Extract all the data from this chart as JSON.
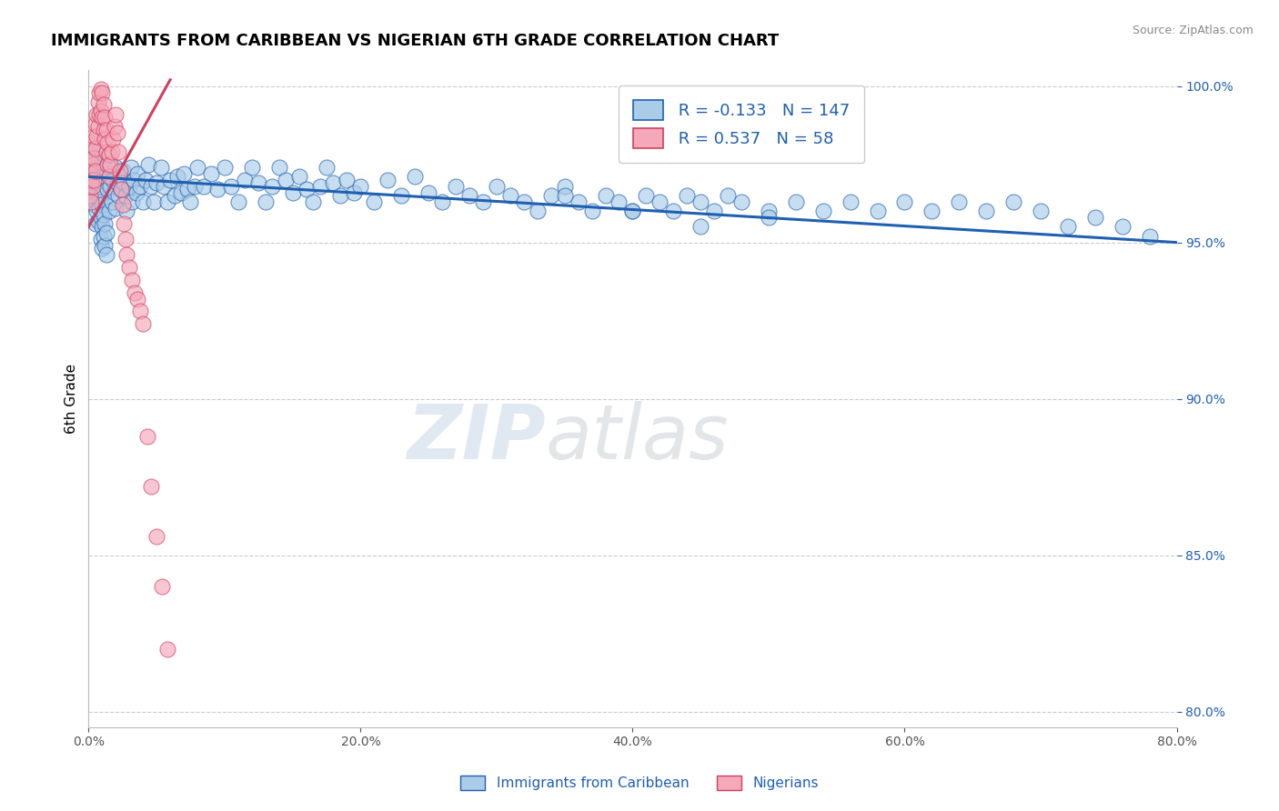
{
  "title": "IMMIGRANTS FROM CARIBBEAN VS NIGERIAN 6TH GRADE CORRELATION CHART",
  "source": "Source: ZipAtlas.com",
  "ylabel": "6th Grade",
  "xlim": [
    0.0,
    0.8
  ],
  "ylim": [
    0.795,
    1.005
  ],
  "legend_blue_R": "-0.133",
  "legend_blue_N": "147",
  "legend_pink_R": "0.537",
  "legend_pink_N": "58",
  "blue_color": "#aacce8",
  "pink_color": "#f4a8ba",
  "blue_line_color": "#2060b0",
  "pink_line_color": "#d04060",
  "blue_trend_x0": 0.0,
  "blue_trend_y0": 0.971,
  "blue_trend_x1": 0.8,
  "blue_trend_y1": 0.95,
  "pink_trend_x0": 0.0,
  "pink_trend_y0": 0.955,
  "pink_trend_x1": 0.06,
  "pink_trend_y1": 1.002,
  "blue_scatter_x": [
    0.001,
    0.001,
    0.002,
    0.002,
    0.002,
    0.003,
    0.003,
    0.003,
    0.004,
    0.004,
    0.004,
    0.005,
    0.005,
    0.005,
    0.005,
    0.006,
    0.006,
    0.006,
    0.007,
    0.007,
    0.007,
    0.008,
    0.008,
    0.009,
    0.009,
    0.009,
    0.01,
    0.01,
    0.01,
    0.011,
    0.011,
    0.012,
    0.012,
    0.013,
    0.013,
    0.014,
    0.014,
    0.015,
    0.015,
    0.016,
    0.016,
    0.017,
    0.018,
    0.019,
    0.02,
    0.02,
    0.021,
    0.022,
    0.023,
    0.024,
    0.025,
    0.026,
    0.027,
    0.028,
    0.03,
    0.031,
    0.032,
    0.033,
    0.035,
    0.036,
    0.038,
    0.04,
    0.042,
    0.044,
    0.046,
    0.048,
    0.05,
    0.053,
    0.055,
    0.058,
    0.06,
    0.063,
    0.065,
    0.068,
    0.07,
    0.073,
    0.075,
    0.078,
    0.08,
    0.085,
    0.09,
    0.095,
    0.1,
    0.105,
    0.11,
    0.115,
    0.12,
    0.125,
    0.13,
    0.135,
    0.14,
    0.145,
    0.15,
    0.155,
    0.16,
    0.165,
    0.17,
    0.175,
    0.18,
    0.185,
    0.19,
    0.195,
    0.2,
    0.21,
    0.22,
    0.23,
    0.24,
    0.25,
    0.26,
    0.27,
    0.28,
    0.29,
    0.3,
    0.31,
    0.32,
    0.33,
    0.34,
    0.35,
    0.36,
    0.37,
    0.38,
    0.39,
    0.4,
    0.41,
    0.42,
    0.43,
    0.44,
    0.45,
    0.46,
    0.47,
    0.48,
    0.5,
    0.52,
    0.54,
    0.56,
    0.58,
    0.6,
    0.62,
    0.64,
    0.66,
    0.68,
    0.7,
    0.72,
    0.74,
    0.76,
    0.78,
    0.35,
    0.4,
    0.45,
    0.5
  ],
  "blue_scatter_y": [
    0.978,
    0.972,
    0.982,
    0.975,
    0.968,
    0.979,
    0.971,
    0.965,
    0.976,
    0.969,
    0.962,
    0.977,
    0.97,
    0.963,
    0.956,
    0.974,
    0.967,
    0.96,
    0.971,
    0.964,
    0.957,
    0.968,
    0.961,
    0.965,
    0.958,
    0.951,
    0.962,
    0.955,
    0.948,
    0.959,
    0.952,
    0.956,
    0.949,
    0.953,
    0.946,
    0.967,
    0.972,
    0.978,
    0.96,
    0.974,
    0.968,
    0.963,
    0.97,
    0.966,
    0.974,
    0.961,
    0.969,
    0.965,
    0.971,
    0.967,
    0.973,
    0.969,
    0.965,
    0.96,
    0.968,
    0.974,
    0.963,
    0.97,
    0.966,
    0.972,
    0.968,
    0.963,
    0.97,
    0.975,
    0.968,
    0.963,
    0.969,
    0.974,
    0.968,
    0.963,
    0.97,
    0.965,
    0.971,
    0.966,
    0.972,
    0.967,
    0.963,
    0.968,
    0.974,
    0.968,
    0.972,
    0.967,
    0.974,
    0.968,
    0.963,
    0.97,
    0.974,
    0.969,
    0.963,
    0.968,
    0.974,
    0.97,
    0.966,
    0.971,
    0.967,
    0.963,
    0.968,
    0.974,
    0.969,
    0.965,
    0.97,
    0.966,
    0.968,
    0.963,
    0.97,
    0.965,
    0.971,
    0.966,
    0.963,
    0.968,
    0.965,
    0.963,
    0.968,
    0.965,
    0.963,
    0.96,
    0.965,
    0.968,
    0.963,
    0.96,
    0.965,
    0.963,
    0.96,
    0.965,
    0.963,
    0.96,
    0.965,
    0.963,
    0.96,
    0.965,
    0.963,
    0.96,
    0.963,
    0.96,
    0.963,
    0.96,
    0.963,
    0.96,
    0.963,
    0.96,
    0.963,
    0.96,
    0.955,
    0.958,
    0.955,
    0.952,
    0.965,
    0.96,
    0.955,
    0.958
  ],
  "pink_scatter_x": [
    0.001,
    0.001,
    0.002,
    0.002,
    0.002,
    0.003,
    0.003,
    0.003,
    0.004,
    0.004,
    0.004,
    0.005,
    0.005,
    0.005,
    0.006,
    0.006,
    0.007,
    0.007,
    0.008,
    0.008,
    0.009,
    0.009,
    0.01,
    0.01,
    0.011,
    0.011,
    0.012,
    0.012,
    0.013,
    0.013,
    0.014,
    0.014,
    0.015,
    0.015,
    0.016,
    0.017,
    0.018,
    0.019,
    0.02,
    0.021,
    0.022,
    0.023,
    0.024,
    0.025,
    0.026,
    0.027,
    0.028,
    0.03,
    0.032,
    0.034,
    0.036,
    0.038,
    0.04,
    0.043,
    0.046,
    0.05,
    0.054,
    0.058
  ],
  "pink_scatter_y": [
    0.972,
    0.965,
    0.978,
    0.97,
    0.963,
    0.981,
    0.975,
    0.968,
    0.984,
    0.977,
    0.97,
    0.988,
    0.98,
    0.973,
    0.991,
    0.984,
    0.995,
    0.987,
    0.998,
    0.991,
    0.999,
    0.992,
    0.998,
    0.99,
    0.994,
    0.986,
    0.99,
    0.983,
    0.986,
    0.979,
    0.982,
    0.975,
    0.978,
    0.971,
    0.975,
    0.979,
    0.983,
    0.987,
    0.991,
    0.985,
    0.979,
    0.973,
    0.967,
    0.962,
    0.956,
    0.951,
    0.946,
    0.942,
    0.938,
    0.934,
    0.932,
    0.928,
    0.924,
    0.888,
    0.872,
    0.856,
    0.84,
    0.82
  ],
  "y_ticks": [
    0.8,
    0.85,
    0.9,
    0.95,
    1.0
  ],
  "x_ticks": [
    0.0,
    0.2,
    0.4,
    0.6,
    0.8
  ]
}
